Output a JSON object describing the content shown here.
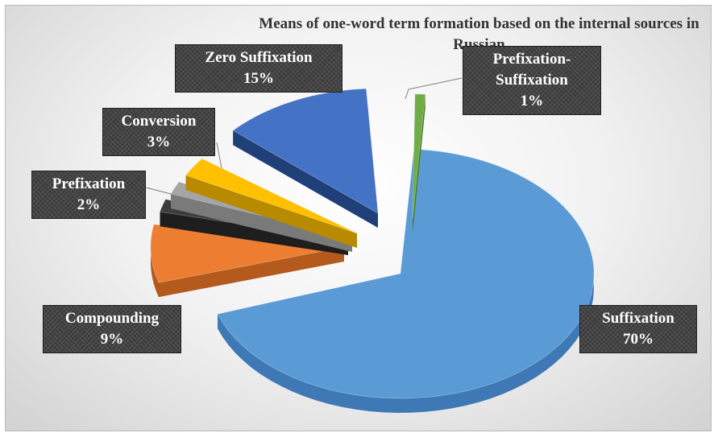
{
  "chart_data": {
    "type": "pie",
    "title": "Means of one-word term formation based on the internal sources in Russian",
    "slices": [
      {
        "label": "Suffixation",
        "value": 70,
        "percent_label": "70%",
        "color": "#5b9bd5",
        "dark": "#3f79b5"
      },
      {
        "label": "Compounding",
        "value": 9,
        "percent_label": "9%",
        "color": "#ed7d31",
        "dark": "#b45a1c"
      },
      {
        "label": "Prefixation",
        "value": 2,
        "percent_label": "2%",
        "color": "#3c3c3c",
        "dark": "#1e1e1e"
      },
      {
        "label": "Prefixation",
        "value": 2,
        "percent_label": "2%",
        "color": "#a5a5a5",
        "dark": "#7a7a7a"
      },
      {
        "label": "Conversion",
        "value": 3,
        "percent_label": "3%",
        "color": "#ffc000",
        "dark": "#b88a00"
      },
      {
        "label": "Zero Suffixation",
        "value": 15,
        "percent_label": "15%",
        "color": "#4472c4",
        "dark": "#1f3f78"
      },
      {
        "label": "Prefixation-Suffixation",
        "value": 1,
        "percent_label": "1%",
        "color": "#70ad47",
        "dark": "#4a7d2c"
      }
    ],
    "callouts": [
      {
        "slice": 0,
        "lines": [
          "Suffixation",
          "70%"
        ]
      },
      {
        "slice": 1,
        "lines": [
          "Compounding",
          "9%"
        ]
      },
      {
        "slice": 2,
        "lines": [
          "Prefixation",
          "2%"
        ]
      },
      {
        "slice": 4,
        "lines": [
          "Conversion",
          "3%"
        ]
      },
      {
        "slice": 5,
        "lines": [
          "Zero Suffixation",
          "15%"
        ]
      },
      {
        "slice": 6,
        "lines": [
          "Prefixation-",
          "Suffixation",
          "1%"
        ]
      }
    ],
    "legend": "none",
    "style": "3d-exploded-pie"
  }
}
